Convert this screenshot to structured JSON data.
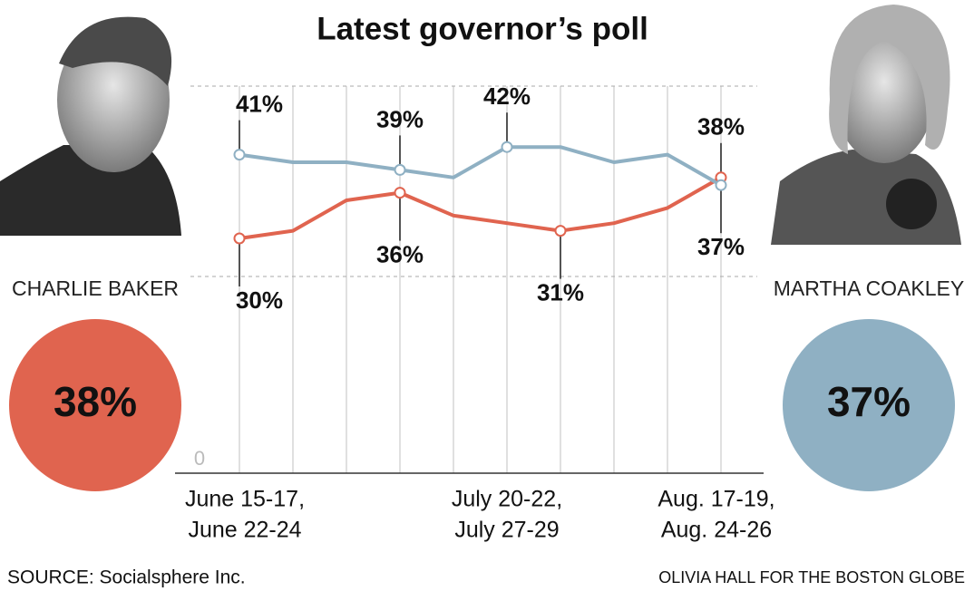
{
  "chart_data": {
    "type": "line",
    "title": "Latest governor’s poll",
    "categories": [
      [
        "June 15-17,",
        "June 22-24"
      ],
      null,
      null,
      null,
      null,
      [
        "July 20-22,",
        "July 27-29"
      ],
      null,
      null,
      null,
      [
        "Aug. 17-19,",
        "Aug. 24-26"
      ]
    ],
    "series": [
      {
        "name": "CHARLIE BAKER",
        "color": "#e0644f",
        "values": [
          30,
          31,
          35,
          36,
          33,
          32,
          31,
          32,
          34,
          38
        ],
        "value_labels": [
          "30%",
          null,
          null,
          "36%",
          null,
          null,
          "31%",
          null,
          null,
          "38%"
        ]
      },
      {
        "name": "MARTHA COAKLEY",
        "color": "#8fb0c3",
        "values": [
          41,
          40,
          40,
          39,
          38,
          42,
          42,
          40,
          41,
          37
        ],
        "value_labels": [
          "41%",
          null,
          null,
          "39%",
          null,
          "42%",
          null,
          null,
          null,
          "37%"
        ]
      }
    ],
    "ylim": [
      0,
      50
    ],
    "yticks": [
      0
    ],
    "dashed_grid": [
      25,
      50
    ],
    "source": "SOURCE: Socialsphere Inc.",
    "credit": "OLIVIA HALL FOR THE BOSTON GLOBE"
  }
}
